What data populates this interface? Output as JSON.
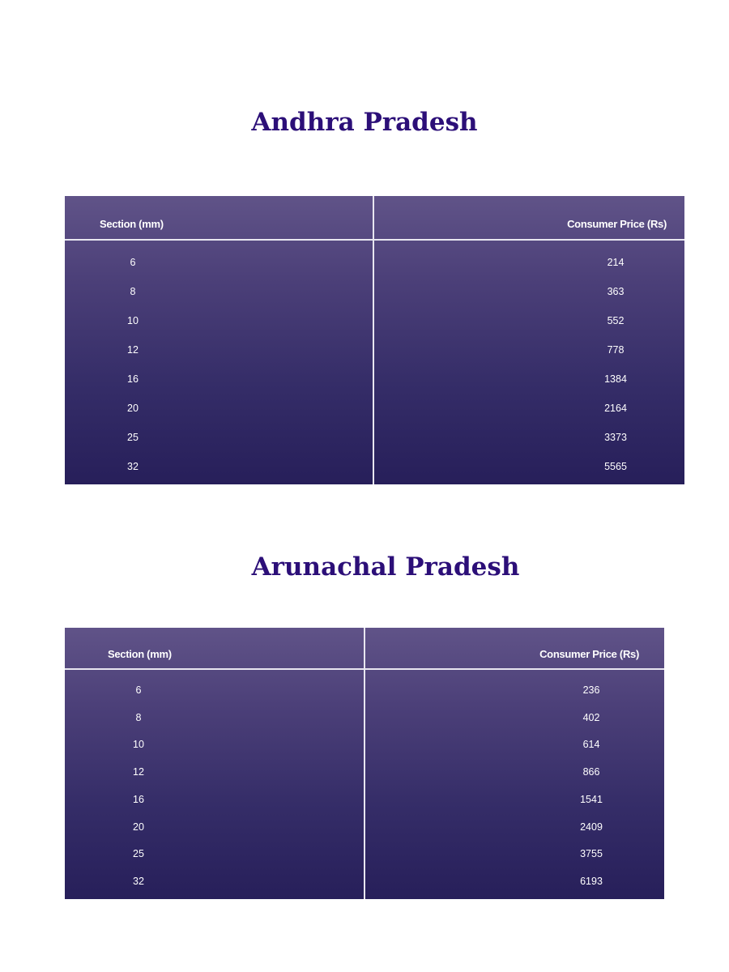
{
  "tables": [
    {
      "title": "Andhra Pradesh",
      "headers": [
        "Section (mm)",
        "Consumer Price (Rs)"
      ],
      "rows": [
        [
          "6",
          "214"
        ],
        [
          "8",
          "363"
        ],
        [
          "10",
          "552"
        ],
        [
          "12",
          "778"
        ],
        [
          "16",
          "1384"
        ],
        [
          "20",
          "2164"
        ],
        [
          "25",
          "3373"
        ],
        [
          "32",
          "5565"
        ]
      ]
    },
    {
      "title": "Arunachal Pradesh",
      "headers": [
        "Section (mm)",
        "Consumer Price (Rs)"
      ],
      "rows": [
        [
          "6",
          "236"
        ],
        [
          "8",
          "402"
        ],
        [
          "10",
          "614"
        ],
        [
          "12",
          "866"
        ],
        [
          "16",
          "1541"
        ],
        [
          "20",
          "2409"
        ],
        [
          "25",
          "3755"
        ],
        [
          "32",
          "6193"
        ]
      ]
    }
  ],
  "colors": {
    "title": "#2c0f78",
    "table_top": "#605388",
    "table_bottom": "#271f5a"
  }
}
